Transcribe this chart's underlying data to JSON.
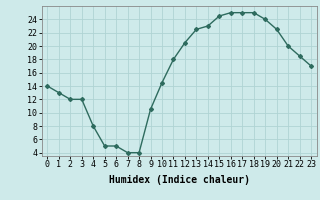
{
  "x": [
    0,
    1,
    2,
    3,
    4,
    5,
    6,
    7,
    8,
    9,
    10,
    11,
    12,
    13,
    14,
    15,
    16,
    17,
    18,
    19,
    20,
    21,
    22,
    23
  ],
  "y": [
    14,
    13,
    12,
    12,
    8,
    5,
    5,
    4,
    4,
    10.5,
    14.5,
    18,
    20.5,
    22.5,
    23,
    24.5,
    25,
    25,
    25,
    24,
    22.5,
    20,
    18.5,
    17
  ],
  "line_color": "#2e6b5e",
  "marker": "D",
  "marker_size": 2,
  "line_width": 1.0,
  "bg_color": "#ceeaea",
  "grid_color": "#b0d4d4",
  "xlabel": "Humidex (Indice chaleur)",
  "xlabel_fontsize": 7,
  "tick_fontsize": 6,
  "ylim": [
    3.5,
    26
  ],
  "xlim": [
    -0.5,
    23.5
  ],
  "yticks": [
    4,
    6,
    8,
    10,
    12,
    14,
    16,
    18,
    20,
    22,
    24
  ],
  "xticks": [
    0,
    1,
    2,
    3,
    4,
    5,
    6,
    7,
    8,
    9,
    10,
    11,
    12,
    13,
    14,
    15,
    16,
    17,
    18,
    19,
    20,
    21,
    22,
    23
  ]
}
